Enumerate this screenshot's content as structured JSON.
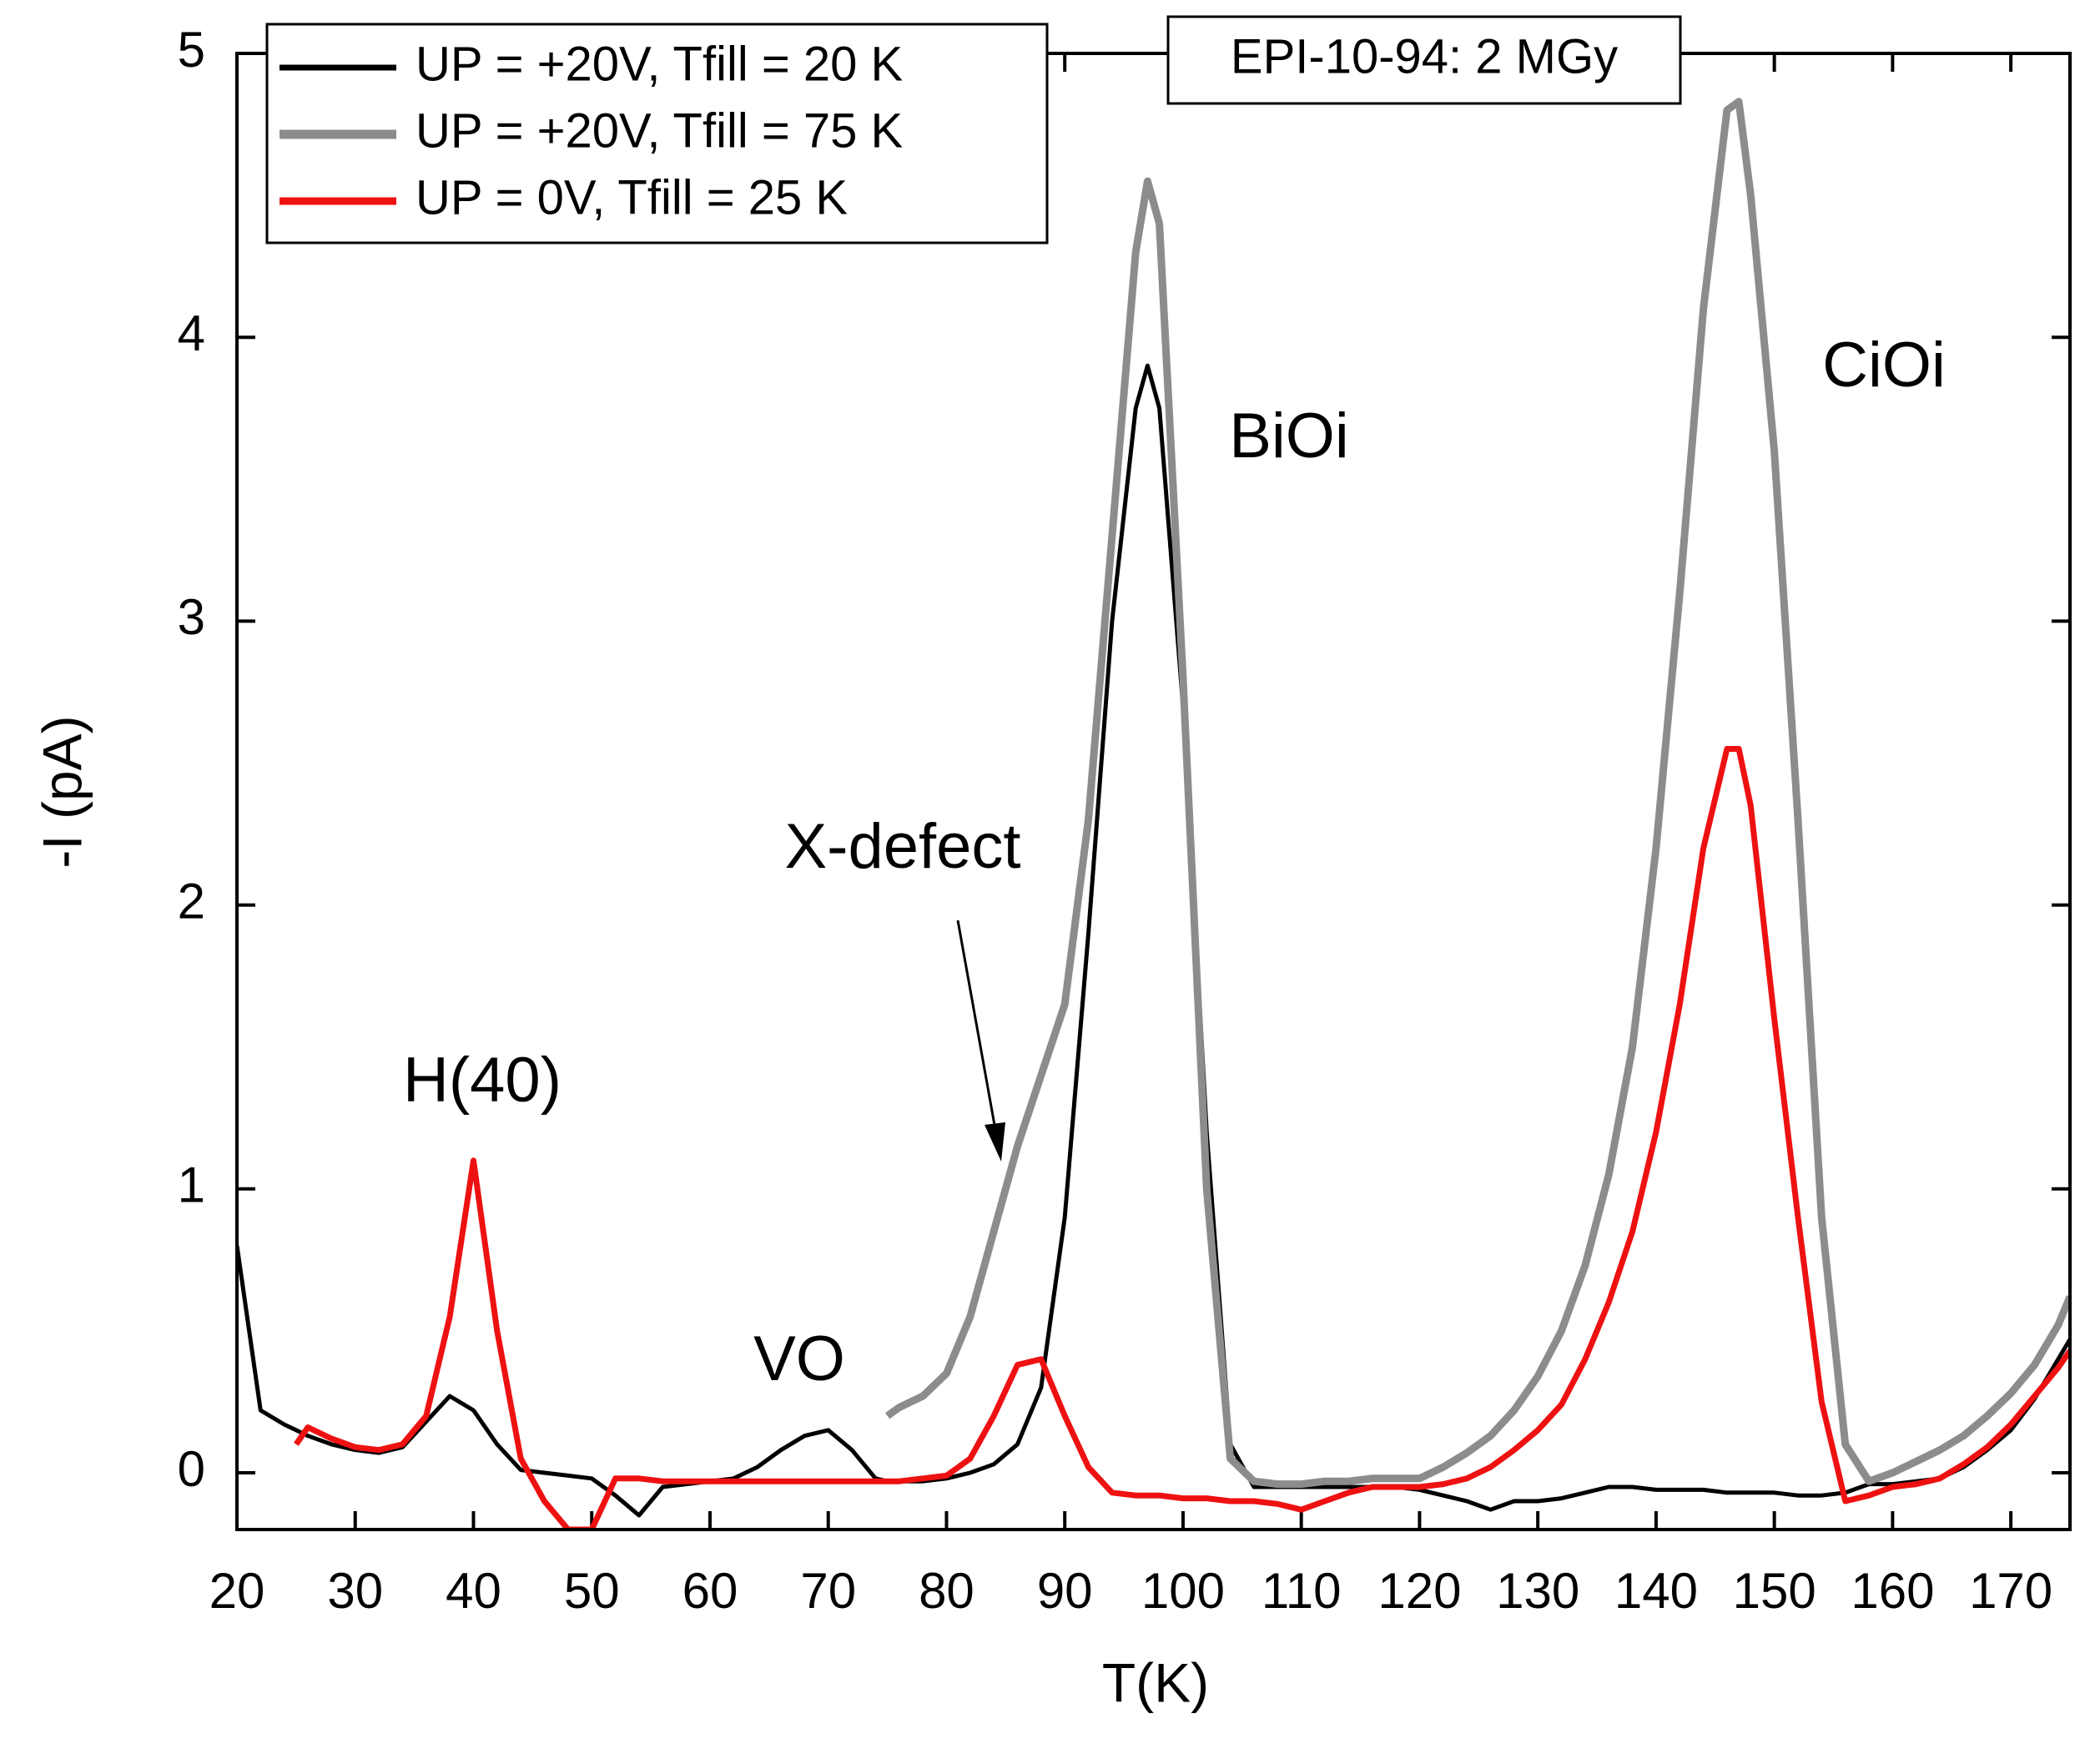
{
  "chart_data": {
    "type": "line",
    "xlabel": "T(K)",
    "ylabel": "-I (pA)",
    "x": [
      20,
      22,
      24,
      25,
      26,
      28,
      30,
      32,
      34,
      36,
      38,
      40,
      42,
      44,
      46,
      48,
      50,
      52,
      54,
      56,
      58,
      60,
      62,
      64,
      66,
      68,
      70,
      72,
      74,
      75,
      76,
      78,
      80,
      82,
      84,
      86,
      88,
      90,
      92,
      94,
      96,
      97,
      98,
      100,
      102,
      104,
      106,
      108,
      110,
      112,
      114,
      116,
      118,
      120,
      122,
      124,
      126,
      128,
      130,
      132,
      134,
      136,
      138,
      140,
      142,
      144,
      146,
      147,
      148,
      150,
      152,
      154,
      156,
      158,
      160,
      162,
      164,
      166,
      168,
      170,
      172,
      174,
      175
    ],
    "series": [
      {
        "name": "UP = +20V, Tfill = 20 K",
        "color": "#000000",
        "values": [
          0.8,
          0.22,
          0.17,
          0.15,
          0.13,
          0.1,
          0.08,
          0.07,
          0.09,
          0.18,
          0.27,
          0.22,
          0.1,
          0.01,
          0,
          -0.01,
          -0.02,
          -0.08,
          -0.15,
          -0.05,
          -0.04,
          -0.03,
          -0.02,
          0.02,
          0.08,
          0.13,
          0.15,
          0.08,
          -0.02,
          -0.03,
          -0.03,
          -0.03,
          -0.02,
          0,
          0.03,
          0.1,
          0.3,
          0.9,
          1.9,
          3.0,
          3.75,
          3.9,
          3.75,
          2.7,
          1.2,
          0.1,
          -0.05,
          -0.05,
          -0.05,
          -0.05,
          -0.05,
          -0.05,
          -0.05,
          -0.06,
          -0.08,
          -0.1,
          -0.13,
          -0.1,
          -0.1,
          -0.09,
          -0.07,
          -0.05,
          -0.05,
          -0.06,
          -0.06,
          -0.06,
          -0.07,
          -0.07,
          -0.07,
          -0.07,
          -0.08,
          -0.08,
          -0.07,
          -0.04,
          -0.04,
          -0.03,
          -0.02,
          0.02,
          0.08,
          0.15,
          0.26,
          0.4,
          0.47
        ]
      },
      {
        "name": "UP = +20V, Tfill = 75 K",
        "color": "#8c8c8c",
        "values": [
          null,
          null,
          null,
          null,
          null,
          null,
          null,
          null,
          null,
          null,
          null,
          null,
          null,
          null,
          null,
          null,
          null,
          null,
          null,
          null,
          null,
          null,
          null,
          null,
          null,
          null,
          null,
          null,
          null,
          0.2,
          0.23,
          0.27,
          0.35,
          0.55,
          0.85,
          1.15,
          1.4,
          1.65,
          2.3,
          3.3,
          4.3,
          4.55,
          4.4,
          2.8,
          1.0,
          0.05,
          -0.03,
          -0.04,
          -0.04,
          -0.03,
          -0.03,
          -0.02,
          -0.02,
          -0.02,
          0.02,
          0.07,
          0.13,
          0.22,
          0.34,
          0.5,
          0.73,
          1.05,
          1.5,
          2.2,
          3.1,
          4.1,
          4.8,
          4.83,
          4.5,
          3.6,
          2.3,
          0.9,
          0.1,
          -0.03,
          0,
          0.04,
          0.08,
          0.13,
          0.2,
          0.28,
          0.38,
          0.52,
          0.62
        ]
      },
      {
        "name": "UP = 0V, Tfill = 25 K",
        "color": "#ee1111",
        "values": [
          null,
          null,
          null,
          0.1,
          0.16,
          0.12,
          0.09,
          0.08,
          0.1,
          0.2,
          0.55,
          1.1,
          0.5,
          0.05,
          -0.1,
          -0.2,
          -0.2,
          -0.02,
          -0.02,
          -0.03,
          -0.03,
          -0.03,
          -0.03,
          -0.03,
          -0.03,
          -0.03,
          -0.03,
          -0.03,
          -0.03,
          -0.03,
          -0.03,
          -0.02,
          -0.01,
          0.05,
          0.2,
          0.38,
          0.4,
          0.2,
          0.02,
          -0.07,
          -0.08,
          -0.08,
          -0.08,
          -0.09,
          -0.09,
          -0.1,
          -0.1,
          -0.11,
          -0.13,
          -0.1,
          -0.07,
          -0.05,
          -0.05,
          -0.05,
          -0.04,
          -0.02,
          0.02,
          0.08,
          0.15,
          0.24,
          0.4,
          0.6,
          0.85,
          1.2,
          1.65,
          2.2,
          2.55,
          2.55,
          2.35,
          1.6,
          0.9,
          0.25,
          -0.1,
          -0.08,
          -0.05,
          -0.04,
          -0.02,
          0.03,
          0.09,
          0.17,
          0.27,
          0.37,
          0.43
        ]
      }
    ],
    "xlim": [
      20,
      175
    ],
    "ylim": [
      -0.2,
      5
    ],
    "xticks": [
      20,
      30,
      40,
      50,
      60,
      70,
      80,
      90,
      100,
      110,
      120,
      130,
      140,
      150,
      160,
      170
    ],
    "yticks": [
      0,
      1,
      2,
      3,
      4,
      5
    ],
    "legend": "upper left",
    "annotations": [
      "H(40)",
      "VO",
      "X-defect",
      "BiOi",
      "CiOi",
      "EPI-10-94: 2 MGy"
    ]
  }
}
